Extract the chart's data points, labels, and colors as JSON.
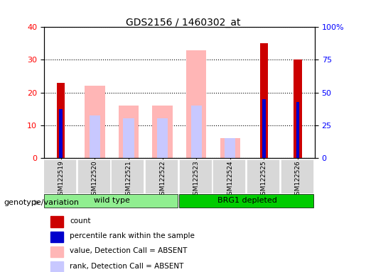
{
  "title": "GDS2156 / 1460302_at",
  "samples": [
    "GSM122519",
    "GSM122520",
    "GSM122521",
    "GSM122522",
    "GSM122523",
    "GSM122524",
    "GSM122525",
    "GSM122526"
  ],
  "count_values": [
    23,
    0,
    0,
    0,
    0,
    0,
    35,
    30
  ],
  "percentile_rank": [
    15,
    0,
    0,
    0,
    0,
    0,
    18,
    17
  ],
  "absent_value": [
    0,
    22,
    16,
    16,
    33,
    6,
    0,
    0
  ],
  "absent_rank": [
    0,
    13,
    12,
    12,
    16,
    6,
    0,
    0
  ],
  "ylim_left": [
    0,
    40
  ],
  "ylim_right": [
    0,
    100
  ],
  "yticks_left": [
    0,
    10,
    20,
    30,
    40
  ],
  "yticks_right": [
    0,
    25,
    50,
    75,
    100
  ],
  "ytick_labels_right": [
    "0",
    "25",
    "50",
    "75",
    "100%"
  ],
  "groups": [
    {
      "label": "wild type",
      "start": 0,
      "end": 4,
      "color": "#90EE90"
    },
    {
      "label": "BRG1 depleted",
      "start": 4,
      "end": 8,
      "color": "#00CC00"
    }
  ],
  "group_label": "genotype/variation",
  "bar_width": 0.4,
  "count_color": "#CC0000",
  "percentile_color": "#0000CC",
  "absent_value_color": "#FFB6B6",
  "absent_rank_color": "#C8C8FF",
  "plot_bg": "#F0F0F0",
  "grid_color": "#000000",
  "legend_items": [
    {
      "label": "count",
      "color": "#CC0000",
      "marker": "s"
    },
    {
      "label": "percentile rank within the sample",
      "color": "#0000CC",
      "marker": "s"
    },
    {
      "label": "value, Detection Call = ABSENT",
      "color": "#FFB6B6",
      "marker": "s"
    },
    {
      "label": "rank, Detection Call = ABSENT",
      "color": "#C8C8FF",
      "marker": "s"
    }
  ]
}
